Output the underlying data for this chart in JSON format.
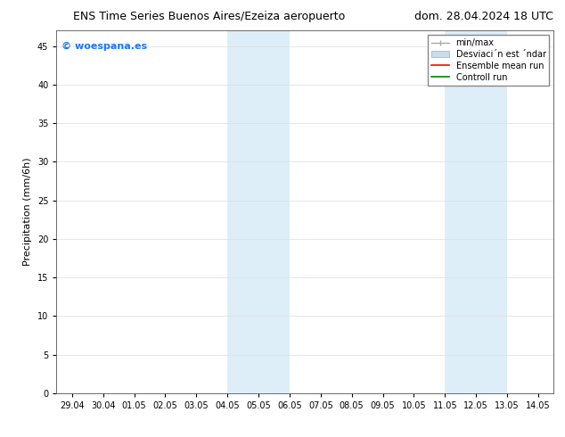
{
  "title_left": "ENS Time Series Buenos Aires/Ezeiza aeropuerto",
  "title_right": "dom. 28.04.2024 18 UTC",
  "ylabel": "Precipitation (mm/6h)",
  "background_color": "#ffffff",
  "plot_bg_color": "#ffffff",
  "ylim": [
    0,
    47
  ],
  "yticks": [
    0,
    5,
    10,
    15,
    20,
    25,
    30,
    35,
    40,
    45
  ],
  "xtick_labels": [
    "29.04",
    "30.04",
    "01.05",
    "02.05",
    "03.05",
    "04.05",
    "05.05",
    "06.05",
    "07.05",
    "08.05",
    "09.05",
    "10.05",
    "11.05",
    "12.05",
    "13.05",
    "14.05"
  ],
  "shaded_pairs": [
    [
      "04.05",
      "06.05"
    ],
    [
      "11.05",
      "13.05"
    ]
  ],
  "shaded_color": "#ddeef8",
  "watermark_text": "© woespana.es",
  "watermark_color": "#1a75ff",
  "legend_labels": [
    "min/max",
    "Desviaci´n est ´ndar",
    "Ensemble mean run",
    "Controll run"
  ],
  "legend_colors": [
    "#aaaaaa",
    "#c8dded",
    "#ff0000",
    "#008000"
  ],
  "title_fontsize": 9,
  "tick_fontsize": 7,
  "ylabel_fontsize": 8,
  "legend_fontsize": 7
}
